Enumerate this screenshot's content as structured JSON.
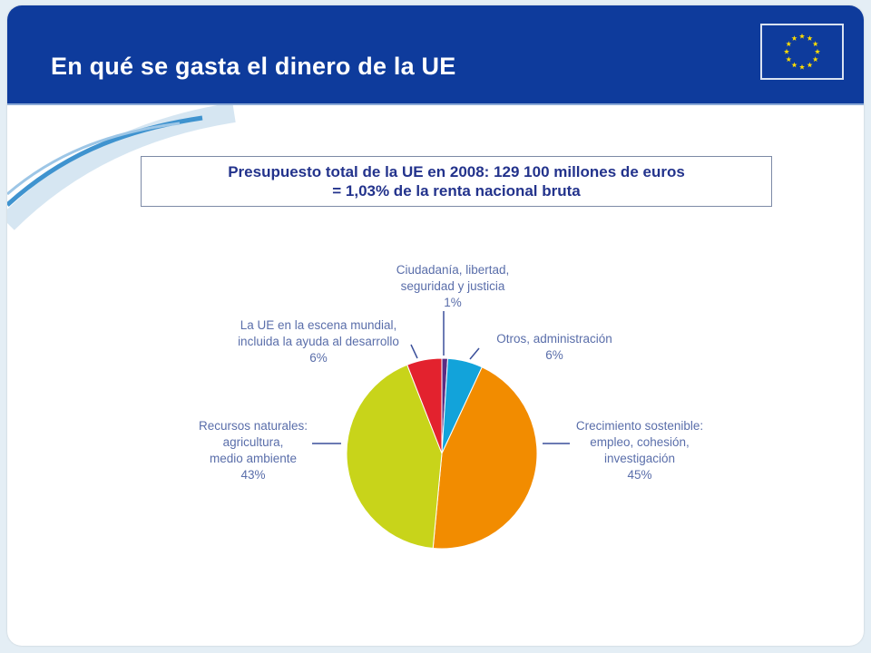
{
  "header": {
    "title": "En qué se gasta el dinero de la UE"
  },
  "budget": {
    "line1": "Presupuesto total de la UE en 2008: 129 100 millones de euros",
    "line2": "= 1,03% de la renta nacional bruta"
  },
  "icons": {
    "flag": "eu-flag-icon"
  },
  "colors": {
    "header_bg": "#0e3b9c",
    "label_text": "#5a6eaa",
    "budget_text": "#23338c"
  },
  "chart_data": {
    "type": "pie",
    "slices": [
      {
        "lines": [
          "Ciudadanía, libertad,",
          "seguridad y justicia",
          "1%"
        ],
        "value": 1,
        "color": "#5b2d82"
      },
      {
        "lines": [
          "Otros, administración",
          "6%"
        ],
        "value": 6,
        "color": "#12a3da"
      },
      {
        "lines": [
          "Crecimiento sostenible:",
          "empleo, cohesión,",
          "investigación",
          "45%"
        ],
        "value": 45,
        "color": "#f28c00"
      },
      {
        "lines": [
          "Recursos naturales:",
          "agricultura,",
          "medio ambiente",
          "43%"
        ],
        "value": 43,
        "color": "#c8d41a"
      },
      {
        "lines": [
          "La UE en la escena mundial,",
          "incluida la ayuda al desarrollo",
          "6%"
        ],
        "value": 6,
        "color": "#e3222e"
      }
    ]
  }
}
